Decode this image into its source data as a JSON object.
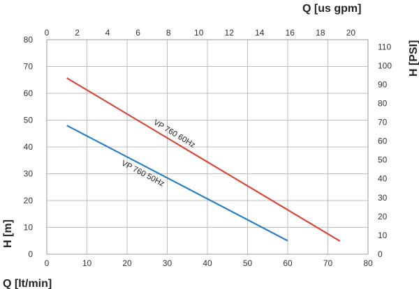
{
  "chart_data": {
    "type": "line",
    "title": "",
    "xlabel": "Q [lt/min]",
    "ylabel": "H [m]",
    "x2label": "Q [us gpm]",
    "y2label": "H [PSI]",
    "xlim": [
      0,
      80
    ],
    "ylim": [
      0,
      80
    ],
    "x2lim": [
      0,
      21.13
    ],
    "y2lim": [
      0,
      113.8
    ],
    "x_ticks": [
      0,
      10,
      20,
      30,
      40,
      50,
      60,
      70,
      80
    ],
    "y_ticks": [
      0,
      10,
      20,
      30,
      40,
      50,
      60,
      70,
      80
    ],
    "x2_ticks": [
      0,
      2,
      4,
      6,
      8,
      10,
      12,
      14,
      16,
      18,
      20
    ],
    "y2_ticks": [
      0,
      10,
      20,
      30,
      40,
      50,
      60,
      70,
      80,
      90,
      100,
      110
    ],
    "grid": true,
    "series": [
      {
        "name": "VP 760 60Hz",
        "color": "#d9463e",
        "x": [
          5,
          73
        ],
        "y": [
          65.7,
          4.9
        ]
      },
      {
        "name": "VP 760 50Hz",
        "color": "#2a7fc1",
        "x": [
          5,
          60
        ],
        "y": [
          48,
          5
        ]
      }
    ]
  }
}
